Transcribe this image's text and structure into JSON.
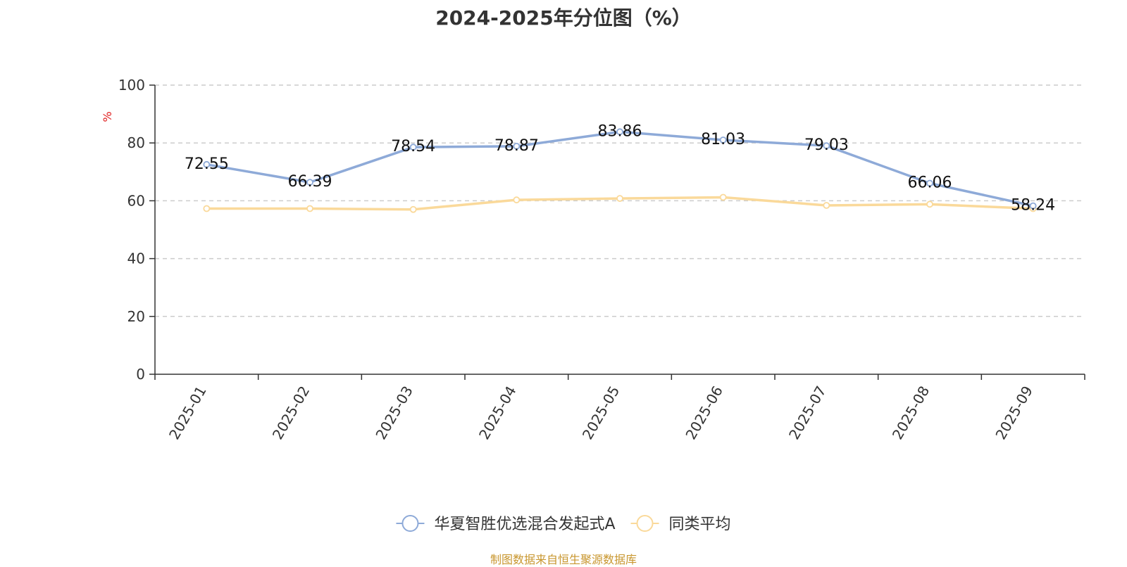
{
  "title": "2024-2025年分位图（%）",
  "source": "制图数据来自恒生聚源数据库",
  "chart_data": {
    "type": "line",
    "title": "2024-2025年分位图（%）",
    "ylabel": "%",
    "ylim": [
      0,
      100
    ],
    "yticks": [
      0,
      20,
      40,
      60,
      80,
      100
    ],
    "grid": true,
    "legend_position": "bottom",
    "categories": [
      "2025-01",
      "2025-02",
      "2025-03",
      "2025-04",
      "2025-05",
      "2025-06",
      "2025-07",
      "2025-08",
      "2025-09"
    ],
    "series": [
      {
        "name": "华夏智胜优选混合发起式A",
        "color": "#8eaad8",
        "values": [
          72.55,
          66.39,
          78.54,
          78.87,
          83.86,
          81.03,
          79.03,
          66.06,
          58.24
        ],
        "labels": [
          "72.55",
          "66.39",
          "78.54",
          "78.87",
          "83.86",
          "81.03",
          "79.03",
          "66.06",
          "58.24"
        ]
      },
      {
        "name": "同类平均",
        "color": "#fad99a",
        "values": [
          57.3,
          57.3,
          57.0,
          60.3,
          60.8,
          61.2,
          58.4,
          58.8,
          57.3
        ]
      }
    ]
  }
}
